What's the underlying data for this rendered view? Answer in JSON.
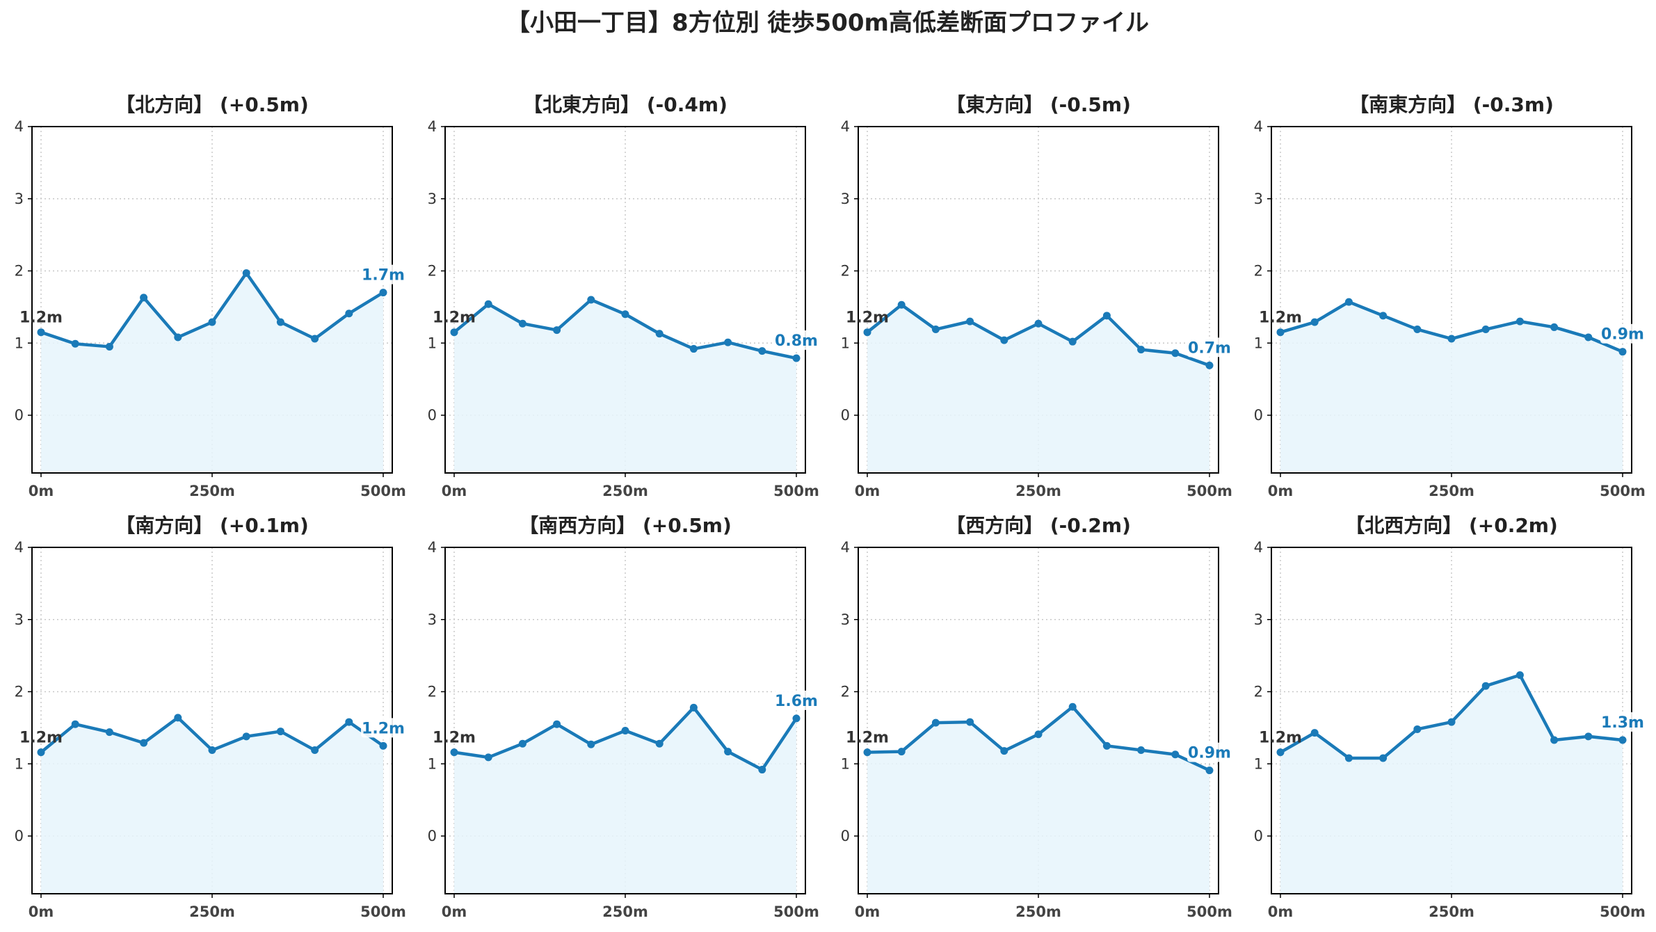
{
  "title": "【小田一丁目】8方位別 徒歩500m高低差断面プロファイル",
  "chart_data": [
    {
      "type": "line",
      "title": "【北方向】 (+0.5m)",
      "x": [
        0,
        50,
        100,
        150,
        200,
        250,
        300,
        350,
        400,
        450,
        500
      ],
      "values": [
        1.15,
        0.99,
        0.95,
        1.63,
        1.08,
        1.29,
        1.97,
        1.29,
        1.06,
        1.41,
        1.7
      ],
      "xticks": [
        0,
        250,
        500
      ],
      "xtick_labels": [
        "0m",
        "250m",
        "500m"
      ],
      "yticks": [
        0,
        1,
        2,
        3,
        4
      ],
      "ylim": [
        -0.8,
        4.0
      ],
      "start_label": "1.2m",
      "end_label": "1.7m"
    },
    {
      "type": "line",
      "title": "【北東方向】 (-0.4m)",
      "x": [
        0,
        50,
        100,
        150,
        200,
        250,
        300,
        350,
        400,
        450,
        500
      ],
      "values": [
        1.15,
        1.54,
        1.27,
        1.18,
        1.6,
        1.4,
        1.13,
        0.92,
        1.01,
        0.89,
        0.79
      ],
      "xticks": [
        0,
        250,
        500
      ],
      "xtick_labels": [
        "0m",
        "250m",
        "500m"
      ],
      "yticks": [
        0,
        1,
        2,
        3,
        4
      ],
      "ylim": [
        -0.8,
        4.0
      ],
      "start_label": "1.2m",
      "end_label": "0.8m"
    },
    {
      "type": "line",
      "title": "【東方向】 (-0.5m)",
      "x": [
        0,
        50,
        100,
        150,
        200,
        250,
        300,
        350,
        400,
        450,
        500
      ],
      "values": [
        1.15,
        1.53,
        1.19,
        1.3,
        1.04,
        1.27,
        1.02,
        1.38,
        0.91,
        0.86,
        0.69
      ],
      "xticks": [
        0,
        250,
        500
      ],
      "xtick_labels": [
        "0m",
        "250m",
        "500m"
      ],
      "yticks": [
        0,
        1,
        2,
        3,
        4
      ],
      "ylim": [
        -0.8,
        4.0
      ],
      "start_label": "1.2m",
      "end_label": "0.7m"
    },
    {
      "type": "line",
      "title": "【南東方向】 (-0.3m)",
      "x": [
        0,
        50,
        100,
        150,
        200,
        250,
        300,
        350,
        400,
        450,
        500
      ],
      "values": [
        1.15,
        1.29,
        1.57,
        1.38,
        1.19,
        1.06,
        1.19,
        1.3,
        1.22,
        1.08,
        0.88
      ],
      "xticks": [
        0,
        250,
        500
      ],
      "xtick_labels": [
        "0m",
        "250m",
        "500m"
      ],
      "yticks": [
        0,
        1,
        2,
        3,
        4
      ],
      "ylim": [
        -0.8,
        4.0
      ],
      "start_label": "1.2m",
      "end_label": "0.9m"
    },
    {
      "type": "line",
      "title": "【南方向】 (+0.1m)",
      "x": [
        0,
        50,
        100,
        150,
        200,
        250,
        300,
        350,
        400,
        450,
        500
      ],
      "values": [
        1.16,
        1.55,
        1.44,
        1.29,
        1.64,
        1.19,
        1.38,
        1.45,
        1.19,
        1.58,
        1.25
      ],
      "xticks": [
        0,
        250,
        500
      ],
      "xtick_labels": [
        "0m",
        "250m",
        "500m"
      ],
      "yticks": [
        0,
        1,
        2,
        3,
        4
      ],
      "ylim": [
        -0.8,
        4.0
      ],
      "start_label": "1.2m",
      "end_label": "1.2m"
    },
    {
      "type": "line",
      "title": "【南西方向】 (+0.5m)",
      "x": [
        0,
        50,
        100,
        150,
        200,
        250,
        300,
        350,
        400,
        450,
        500
      ],
      "values": [
        1.16,
        1.09,
        1.28,
        1.55,
        1.27,
        1.46,
        1.28,
        1.78,
        1.17,
        0.92,
        1.63
      ],
      "xticks": [
        0,
        250,
        500
      ],
      "xtick_labels": [
        "0m",
        "250m",
        "500m"
      ],
      "yticks": [
        0,
        1,
        2,
        3,
        4
      ],
      "ylim": [
        -0.8,
        4.0
      ],
      "start_label": "1.2m",
      "end_label": "1.6m"
    },
    {
      "type": "line",
      "title": "【西方向】 (-0.2m)",
      "x": [
        0,
        50,
        100,
        150,
        200,
        250,
        300,
        350,
        400,
        450,
        500
      ],
      "values": [
        1.16,
        1.17,
        1.57,
        1.58,
        1.18,
        1.41,
        1.79,
        1.25,
        1.19,
        1.13,
        0.91
      ],
      "xticks": [
        0,
        250,
        500
      ],
      "xtick_labels": [
        "0m",
        "250m",
        "500m"
      ],
      "yticks": [
        0,
        1,
        2,
        3,
        4
      ],
      "ylim": [
        -0.8,
        4.0
      ],
      "start_label": "1.2m",
      "end_label": "0.9m"
    },
    {
      "type": "line",
      "title": "【北西方向】 (+0.2m)",
      "x": [
        0,
        50,
        100,
        150,
        200,
        250,
        300,
        350,
        400,
        450,
        500
      ],
      "values": [
        1.16,
        1.43,
        1.08,
        1.08,
        1.48,
        1.58,
        2.08,
        2.23,
        1.33,
        1.38,
        1.33
      ],
      "xticks": [
        0,
        250,
        500
      ],
      "xtick_labels": [
        "0m",
        "250m",
        "500m"
      ],
      "yticks": [
        0,
        1,
        2,
        3,
        4
      ],
      "ylim": [
        -0.8,
        4.0
      ],
      "start_label": "1.2m",
      "end_label": "1.3m"
    }
  ],
  "colors": {
    "line": "#1a7ab8",
    "fill": "#e6f5fb",
    "grid": "#c8c8c8",
    "title": "#222222",
    "start_label": "#333333",
    "end_label": "#1a7ab8"
  }
}
